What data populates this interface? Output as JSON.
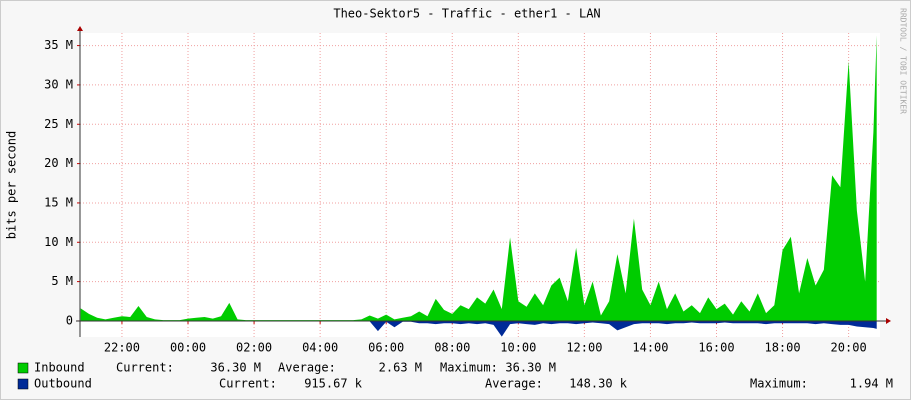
{
  "chart_data": {
    "type": "area",
    "title": "Theo-Sektor5 - Traffic - ether1 - LAN",
    "y_label": "bits per second",
    "watermark": "RRDTOOL / TOBI OETIKER",
    "x": [
      20.75,
      21,
      21.25,
      21.5,
      21.75,
      22,
      22.25,
      22.5,
      22.75,
      23,
      23.25,
      23.5,
      23.75,
      24,
      24.25,
      24.5,
      24.75,
      25,
      25.25,
      25.5,
      25.75,
      26,
      26.25,
      26.5,
      26.75,
      27,
      27.25,
      27.5,
      27.75,
      28,
      28.25,
      28.5,
      28.75,
      29,
      29.25,
      29.5,
      29.75,
      30,
      30.25,
      30.5,
      30.75,
      31,
      31.25,
      31.5,
      31.75,
      32,
      32.25,
      32.5,
      32.75,
      33,
      33.25,
      33.5,
      33.75,
      34,
      34.25,
      34.5,
      34.75,
      35,
      35.25,
      35.5,
      35.75,
      36,
      36.25,
      36.5,
      36.75,
      37,
      37.25,
      37.5,
      37.75,
      38,
      38.25,
      38.5,
      38.75,
      39,
      39.25,
      39.5,
      39.75,
      40,
      40.25,
      40.5,
      40.75,
      41,
      41.25,
      41.5,
      41.75,
      42,
      42.25,
      42.5,
      42.75,
      43,
      43.25,
      43.5,
      43.75,
      44,
      44.25,
      44.5,
      44.75,
      44.85
    ],
    "series": [
      {
        "name": "Inbound",
        "color": "#00cc00",
        "values": [
          1.6,
          0.9,
          0.4,
          0.2,
          0.4,
          0.6,
          0.5,
          1.9,
          0.5,
          0.2,
          0.1,
          0.1,
          0.1,
          0.3,
          0.4,
          0.5,
          0.3,
          0.6,
          2.3,
          0.2,
          0.1,
          0.1,
          0.1,
          0.1,
          0.1,
          0.1,
          0.1,
          0.1,
          0.1,
          0.1,
          0.1,
          0.1,
          0.1,
          0.1,
          0.2,
          0.7,
          0.3,
          0.8,
          0.2,
          0.4,
          0.6,
          1.2,
          0.6,
          2.8,
          1.4,
          0.9,
          2.0,
          1.5,
          3.0,
          2.2,
          4.0,
          1.5,
          10.6,
          2.5,
          1.8,
          3.5,
          2.0,
          4.5,
          5.5,
          2.5,
          9.3,
          2.0,
          5.0,
          0.7,
          2.5,
          8.5,
          3.5,
          13.0,
          4.0,
          2.0,
          5.0,
          1.5,
          3.5,
          1.2,
          2.0,
          1.0,
          3.0,
          1.5,
          2.2,
          0.8,
          2.5,
          1.2,
          3.5,
          1.0,
          2.0,
          9.0,
          10.7,
          3.5,
          8.0,
          4.5,
          6.5,
          18.5,
          17.0,
          33.0,
          14.0,
          5.0,
          24.0,
          36.3
        ],
        "stats": [
          {
            "label": "Current:",
            "value": "36.30 M"
          },
          {
            "label": "Average:",
            "value": "2.63 M"
          },
          {
            "label": "Maximum:",
            "value": "36.30 M"
          }
        ]
      },
      {
        "name": "Outbound",
        "color": "#002a97",
        "values": [
          -0.05,
          -0.05,
          -0.05,
          -0.05,
          -0.05,
          -0.05,
          -0.05,
          -0.05,
          -0.05,
          -0.05,
          -0.05,
          -0.05,
          -0.05,
          -0.05,
          -0.05,
          -0.05,
          -0.05,
          -0.05,
          -0.05,
          -0.05,
          -0.05,
          -0.05,
          -0.05,
          -0.05,
          -0.05,
          -0.05,
          -0.05,
          -0.05,
          -0.05,
          -0.05,
          -0.05,
          -0.05,
          -0.05,
          -0.05,
          -0.05,
          -0.05,
          -1.3,
          -0.1,
          -0.8,
          -0.1,
          -0.1,
          -0.3,
          -0.3,
          -0.4,
          -0.3,
          -0.3,
          -0.4,
          -0.3,
          -0.4,
          -0.3,
          -0.5,
          -2.0,
          -0.4,
          -0.3,
          -0.4,
          -0.5,
          -0.3,
          -0.4,
          -0.3,
          -0.3,
          -0.4,
          -0.3,
          -0.2,
          -0.3,
          -0.4,
          -1.2,
          -0.8,
          -0.4,
          -0.3,
          -0.3,
          -0.3,
          -0.4,
          -0.3,
          -0.3,
          -0.2,
          -0.3,
          -0.3,
          -0.3,
          -0.2,
          -0.3,
          -0.3,
          -0.3,
          -0.3,
          -0.4,
          -0.3,
          -0.3,
          -0.3,
          -0.3,
          -0.3,
          -0.4,
          -0.3,
          -0.4,
          -0.5,
          -0.5,
          -0.7,
          -0.8,
          -0.9,
          -1.0
        ],
        "stats": [
          {
            "label": "Current:",
            "value": "915.67 k"
          },
          {
            "label": "Average:",
            "value": "148.30 k"
          },
          {
            "label": "Maximum:",
            "value": "1.94 M"
          }
        ]
      }
    ],
    "xlim": [
      20.73,
      44.95
    ],
    "xticks": [
      {
        "value": 22,
        "label": "22:00"
      },
      {
        "value": 24,
        "label": "00:00"
      },
      {
        "value": 26,
        "label": "02:00"
      },
      {
        "value": 28,
        "label": "04:00"
      },
      {
        "value": 30,
        "label": "06:00"
      },
      {
        "value": 32,
        "label": "08:00"
      },
      {
        "value": 34,
        "label": "10:00"
      },
      {
        "value": 36,
        "label": "12:00"
      },
      {
        "value": 38,
        "label": "14:00"
      },
      {
        "value": 40,
        "label": "16:00"
      },
      {
        "value": 42,
        "label": "18:00"
      },
      {
        "value": 44,
        "label": "20:00"
      }
    ],
    "ylim": [
      -2.04,
      36.6
    ],
    "yticks": [
      0,
      {
        "value": 5,
        "label": "5 M"
      },
      {
        "value": 10,
        "label": "10 M"
      },
      {
        "value": 15,
        "label": "15 M"
      },
      {
        "value": 20,
        "label": "20 M"
      },
      {
        "value": 25,
        "label": "25 M"
      },
      {
        "value": 30,
        "label": "30 M"
      },
      {
        "value": 35,
        "label": "35 M"
      }
    ],
    "grid": true
  }
}
